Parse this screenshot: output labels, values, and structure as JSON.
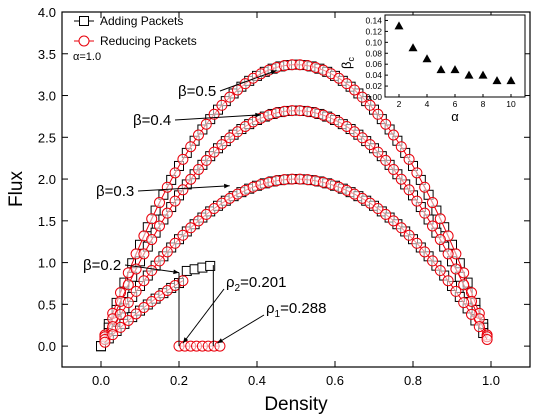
{
  "chart_data": [
    {
      "type": "scatter",
      "xlabel": "Density",
      "ylabel": "Flux",
      "xlim": [
        -0.1,
        1.1
      ],
      "ylim": [
        -0.25,
        4.0
      ],
      "xticks": [
        "0.0",
        "0.2",
        "0.4",
        "0.6",
        "0.8",
        "1.0"
      ],
      "xtick_values": [
        0.0,
        0.2,
        0.4,
        0.6,
        0.8,
        1.0
      ],
      "yticks": [
        "0.0",
        "0.5",
        "1.0",
        "1.5",
        "2.0",
        "2.5",
        "3.0",
        "3.5",
        "4.0"
      ],
      "ytick_values": [
        0.0,
        0.5,
        1.0,
        1.5,
        2.0,
        2.5,
        3.0,
        3.5,
        4.0
      ],
      "legend_placement": "top-left",
      "grid": false,
      "series": [
        {
          "name": "Adding Packets",
          "marker": "open-square",
          "color": "#000000",
          "curves": [
            {
              "beta": 0.5,
              "peak": 3.37,
              "x_start": 0.0,
              "x_end": 0.98,
              "step": 0.02
            },
            {
              "beta": 0.4,
              "peak": 2.82,
              "x_start": 0.0,
              "x_end": 0.98,
              "step": 0.02
            },
            {
              "beta": 0.3,
              "peak": 2.0,
              "x_start": 0.0,
              "x_end": 0.98,
              "step": 0.02
            },
            {
              "beta": 0.2,
              "peak": 1.18,
              "x_start": 0.0,
              "x_end": 0.29,
              "step": 0.02,
              "jam_y": 0.97
            }
          ]
        },
        {
          "name": "Reducing Packets",
          "marker": "open-circle",
          "color": "#e8000b",
          "curves": [
            {
              "beta": 0.5,
              "peak": 3.37,
              "x_start": 0.01,
              "x_end": 0.99,
              "step": 0.02
            },
            {
              "beta": 0.4,
              "peak": 2.82,
              "x_start": 0.01,
              "x_end": 0.99,
              "step": 0.02
            },
            {
              "beta": 0.3,
              "peak": 2.0,
              "x_start": 0.01,
              "x_end": 0.99,
              "step": 0.02
            },
            {
              "beta": 0.2,
              "peak": 1.18,
              "x_start": 0.01,
              "x_end": 0.2,
              "step": 0.02
            },
            {
              "beta": 0.2,
              "flat_y": 0.0,
              "x_start": 0.2,
              "x_end": 0.31,
              "step": 0.015
            }
          ]
        }
      ],
      "annotations": {
        "alpha_label": "α=1.0",
        "beta_labels": [
          {
            "text": "β=0.5",
            "target_x": 0.45,
            "target_y": 3.3
          },
          {
            "text": "β=0.4",
            "target_x": 0.41,
            "target_y": 2.77
          },
          {
            "text": "β=0.3",
            "target_x": 0.33,
            "target_y": 1.92
          },
          {
            "text": "β=0.2",
            "target_x": 0.2,
            "target_y": 0.88
          }
        ],
        "rho_labels": [
          {
            "text": "ρ",
            "sub": "2",
            "value": "=0.201",
            "target_x": 0.2,
            "target_y": 0.0
          },
          {
            "text": "ρ",
            "sub": "1",
            "value": "=0.288",
            "target_x": 0.288,
            "target_y": 0.0
          }
        ],
        "drop_lines": [
          {
            "x": 0.2,
            "y_from": 0.88,
            "y_to": 0.0
          },
          {
            "x": 0.288,
            "y_from": 0.97,
            "y_to": 0.0
          }
        ]
      }
    },
    {
      "type": "scatter",
      "inset": true,
      "marker": "filled-triangle",
      "color": "#000000",
      "xlabel": "α",
      "ylabel": "β",
      "ylabel_sub": "c",
      "xlim": [
        1,
        11
      ],
      "ylim": [
        0.0,
        0.15
      ],
      "xticks": [
        "2",
        "4",
        "6",
        "8",
        "10"
      ],
      "xtick_values": [
        2,
        4,
        6,
        8,
        10
      ],
      "yticks": [
        "0.00",
        "0.02",
        "0.04",
        "0.06",
        "0.08",
        "0.10",
        "0.12",
        "0.14"
      ],
      "ytick_values": [
        0.0,
        0.02,
        0.04,
        0.06,
        0.08,
        0.1,
        0.12,
        0.14
      ],
      "x": [
        2,
        3,
        4,
        5,
        6,
        7,
        8,
        9,
        10
      ],
      "values": [
        0.13,
        0.09,
        0.07,
        0.05,
        0.05,
        0.04,
        0.04,
        0.03,
        0.03
      ]
    }
  ]
}
